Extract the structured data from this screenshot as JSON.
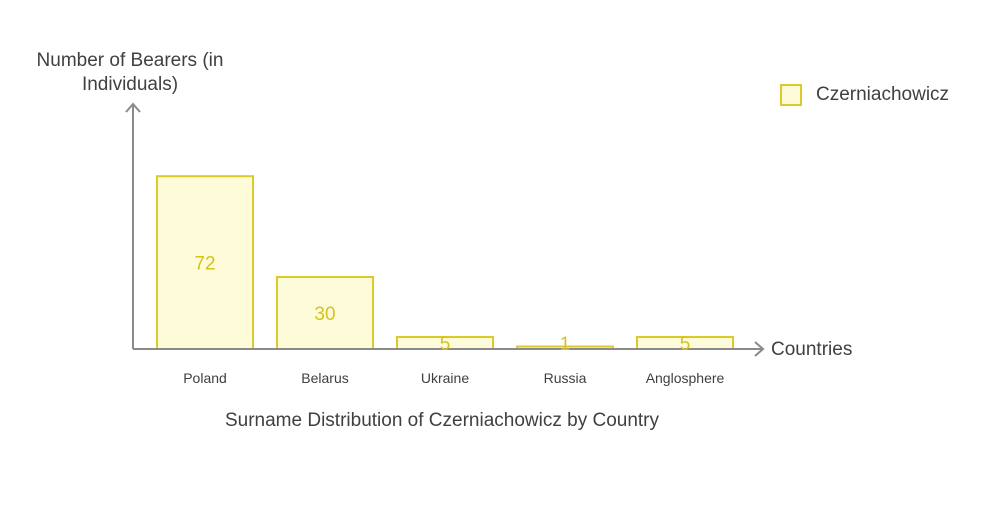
{
  "chart_data": {
    "type": "bar",
    "title": "Surname Distribution of Czerniachowicz by Country",
    "xlabel": "Countries",
    "ylabel": "Number of Bearers (in Individuals)",
    "categories": [
      "Poland",
      "Belarus",
      "Ukraine",
      "Russia",
      "Anglosphere"
    ],
    "series": [
      {
        "name": "Czerniachowicz",
        "values": [
          72,
          30,
          5,
          1,
          5
        ]
      }
    ],
    "ylim": [
      0,
      100
    ],
    "grid": false,
    "legend_position": "top-right",
    "data_labels": true
  },
  "chart": {
    "title": "Surname Distribution of Czerniachowicz by Country",
    "y_axis_label": "Number of Bearers (in Individuals)",
    "x_axis_label": "Countries",
    "legend": {
      "label": "Czerniachowicz"
    },
    "categories": [
      "Poland",
      "Belarus",
      "Ukraine",
      "Russia",
      "Anglosphere"
    ],
    "value_labels": [
      "72",
      "30",
      "5",
      "1",
      "5"
    ]
  },
  "colors": {
    "bar_fill": "#fefbd8",
    "bar_stroke": "#dcc92a",
    "value_label": "#d4c21f",
    "axis": "#8a8a8a",
    "text": "#404040"
  }
}
